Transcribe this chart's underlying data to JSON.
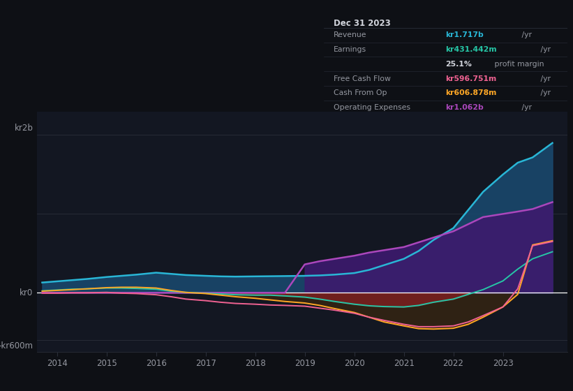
{
  "background_color": "#131722",
  "chart_bg": "#131722",
  "outer_bg": "#0e1015",
  "grid_color": "#2a2e39",
  "text_color": "#9598a1",
  "white": "#ffffff",
  "ylabel_top": "kr2b",
  "ylabel_mid": "kr0",
  "ylabel_bot": "-kr600m",
  "ylim": [
    -750,
    2300
  ],
  "xlim": [
    2013.6,
    2024.3
  ],
  "xtick_vals": [
    2014,
    2015,
    2016,
    2017,
    2018,
    2019,
    2020,
    2021,
    2022,
    2023
  ],
  "years": [
    2013.7,
    2014.0,
    2014.3,
    2014.6,
    2015.0,
    2015.3,
    2015.6,
    2016.0,
    2016.3,
    2016.6,
    2017.0,
    2017.3,
    2017.6,
    2018.0,
    2018.3,
    2018.6,
    2019.0,
    2019.3,
    2019.6,
    2020.0,
    2020.3,
    2020.6,
    2021.0,
    2021.3,
    2021.6,
    2022.0,
    2022.3,
    2022.6,
    2023.0,
    2023.3,
    2023.6,
    2024.0
  ],
  "revenue": [
    130,
    145,
    160,
    175,
    200,
    215,
    230,
    255,
    240,
    225,
    215,
    208,
    205,
    208,
    210,
    212,
    215,
    220,
    230,
    250,
    290,
    350,
    430,
    530,
    670,
    820,
    1050,
    1280,
    1500,
    1650,
    1717,
    1900
  ],
  "earnings": [
    25,
    35,
    45,
    50,
    60,
    60,
    55,
    45,
    20,
    5,
    -5,
    -15,
    -25,
    -30,
    -30,
    -40,
    -55,
    -80,
    -110,
    -145,
    -165,
    -175,
    -180,
    -160,
    -120,
    -80,
    -20,
    40,
    150,
    300,
    431,
    520
  ],
  "free_cash_flow": [
    -5,
    -5,
    0,
    0,
    5,
    -5,
    -10,
    -25,
    -50,
    -80,
    -100,
    -120,
    -135,
    -145,
    -155,
    -160,
    -170,
    -195,
    -220,
    -260,
    -310,
    -350,
    -400,
    -430,
    -430,
    -420,
    -370,
    -290,
    -180,
    50,
    597,
    650
  ],
  "cash_from_op": [
    20,
    30,
    40,
    50,
    65,
    70,
    70,
    60,
    30,
    5,
    -10,
    -30,
    -50,
    -70,
    -90,
    -110,
    -130,
    -160,
    -200,
    -250,
    -310,
    -370,
    -420,
    -455,
    -460,
    -450,
    -400,
    -310,
    -180,
    -20,
    607,
    660
  ],
  "op_expenses": [
    0,
    0,
    0,
    0,
    0,
    0,
    0,
    0,
    0,
    0,
    0,
    0,
    0,
    0,
    0,
    0,
    360,
    400,
    430,
    470,
    510,
    540,
    580,
    640,
    700,
    780,
    870,
    960,
    1000,
    1030,
    1062,
    1150
  ],
  "revenue_color": "#29b6d6",
  "earnings_color": "#26c6a6",
  "fcf_color": "#f06292",
  "cfop_color": "#ffa726",
  "opex_color": "#ab47bc",
  "revenue_fill": "#1a4a70",
  "earnings_neg_fill": "#7b1f1f",
  "opex_fill": "#3d1a6e",
  "cfop_neg_fill": "#5a3500",
  "info_box": {
    "title": "Dec 31 2023",
    "title_color": "#d1d4dc",
    "bg_color": "#0a0c12",
    "border_color": "#2a2e39",
    "rows": [
      {
        "label": "Revenue",
        "value": "kr1.717b",
        "unit": " /yr",
        "value_color": "#29b6d6"
      },
      {
        "label": "Earnings",
        "value": "kr431.442m",
        "unit": " /yr",
        "value_color": "#26c6a6"
      },
      {
        "label": "",
        "value": "25.1%",
        "unit": " profit margin",
        "value_color": "#d1d4dc"
      },
      {
        "label": "Free Cash Flow",
        "value": "kr596.751m",
        "unit": " /yr",
        "value_color": "#f06292"
      },
      {
        "label": "Cash From Op",
        "value": "kr606.878m",
        "unit": " /yr",
        "value_color": "#ffa726"
      },
      {
        "label": "Operating Expenses",
        "value": "kr1.062b",
        "unit": " /yr",
        "value_color": "#ab47bc"
      }
    ]
  },
  "legend": [
    {
      "label": "Revenue",
      "color": "#29b6d6"
    },
    {
      "label": "Earnings",
      "color": "#26c6a6"
    },
    {
      "label": "Free Cash Flow",
      "color": "#f06292"
    },
    {
      "label": "Cash From Op",
      "color": "#ffa726"
    },
    {
      "label": "Operating Expenses",
      "color": "#ab47bc"
    }
  ]
}
